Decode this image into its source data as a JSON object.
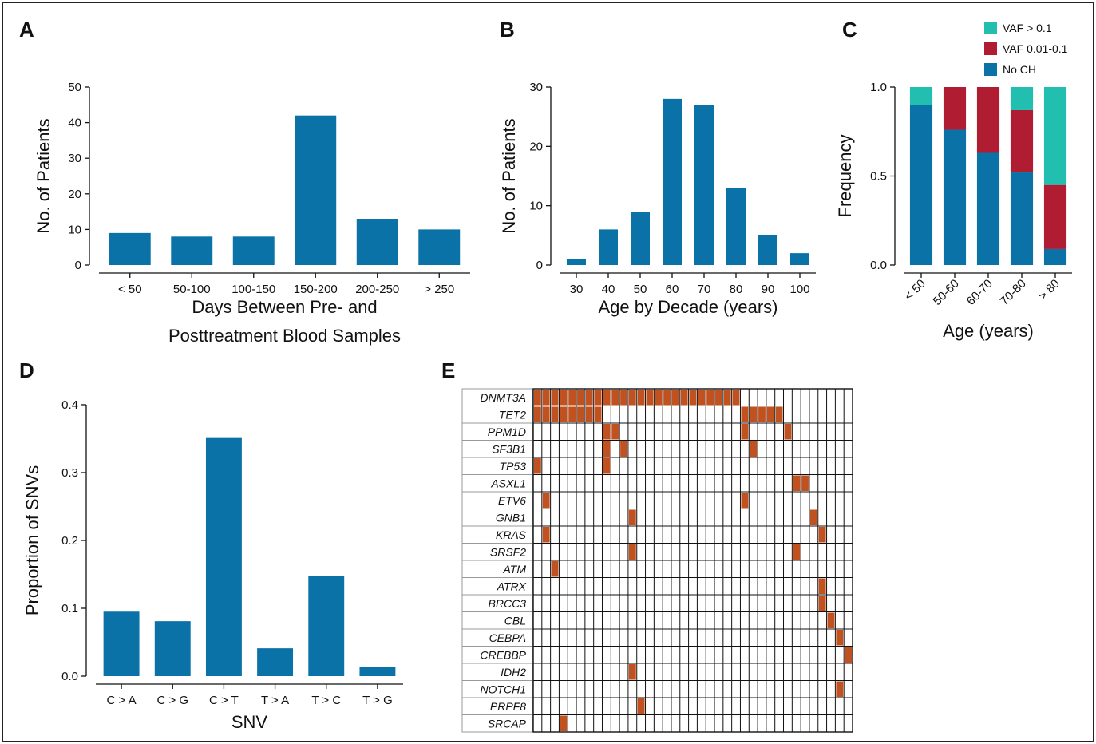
{
  "colors": {
    "bar": "#0a72a6",
    "vaf_high": "#22bfb0",
    "vaf_mid": "#b01c32",
    "mut": "#c1521f",
    "axis": "#111111"
  },
  "panels": {
    "A": "A",
    "B": "B",
    "C": "C",
    "D": "D",
    "E": "E"
  },
  "chart_data": [
    {
      "panel": "A",
      "type": "bar",
      "categories": [
        "< 50",
        "50-100",
        "100-150",
        "150-200",
        "200-250",
        "> 250"
      ],
      "values": [
        9,
        8,
        8,
        42,
        13,
        10
      ],
      "xlabel_lines": [
        "Days Between Pre- and",
        "Posttreatment Blood Samples"
      ],
      "ylabel": "No. of Patients",
      "ylim": [
        0,
        50
      ],
      "yticks": [
        "0",
        "10",
        "20",
        "30",
        "40",
        "50"
      ]
    },
    {
      "panel": "B",
      "type": "bar",
      "categories": [
        "30",
        "40",
        "50",
        "60",
        "70",
        "80",
        "90",
        "100"
      ],
      "values": [
        1,
        6,
        9,
        28,
        27,
        13,
        5,
        2
      ],
      "xlabel": "Age by Decade (years)",
      "ylabel": "No. of Patients",
      "ylim": [
        0,
        30
      ],
      "yticks": [
        "0",
        "10",
        "20",
        "30"
      ]
    },
    {
      "panel": "C",
      "type": "bar",
      "stacked": true,
      "categories": [
        "< 50",
        "50-60",
        "60-70",
        "70-80",
        "> 80"
      ],
      "series": [
        {
          "name": "No CH",
          "values": [
            0.9,
            0.76,
            0.63,
            0.52,
            0.09
          ]
        },
        {
          "name": "VAF 0.01-0.1",
          "values": [
            0.0,
            0.24,
            0.37,
            0.35,
            0.36
          ]
        },
        {
          "name": "VAF > 0.1",
          "values": [
            0.1,
            0.0,
            0.0,
            0.13,
            0.55
          ]
        }
      ],
      "xlabel": "Age (years)",
      "ylabel": "Frequency",
      "ylim": [
        0,
        1
      ],
      "yticks": [
        "0.0",
        "0.5",
        "1.0"
      ],
      "legend": "top-right"
    },
    {
      "panel": "D",
      "type": "bar",
      "categories": [
        "C > A",
        "C > G",
        "C > T",
        "T > A",
        "T > C",
        "T > G"
      ],
      "values": [
        0.095,
        0.081,
        0.351,
        0.041,
        0.148,
        0.014
      ],
      "xlabel": "SNV",
      "ylabel": "Proportion of SNVs",
      "ylim": [
        0,
        0.4
      ],
      "yticks": [
        "0.0",
        "0.1",
        "0.2",
        "0.3",
        "0.4"
      ]
    },
    {
      "panel": "E",
      "type": "heatmap",
      "genes": [
        "DNMT3A",
        "TET2",
        "PPM1D",
        "SF3B1",
        "TP53",
        "ASXL1",
        "ETV6",
        "GNB1",
        "KRAS",
        "SRSF2",
        "ATM",
        "ATRX",
        "BRCC3",
        "CBL",
        "CEBPA",
        "CREBBP",
        "IDH2",
        "NOTCH1",
        "PRPF8",
        "SRCAP"
      ],
      "n_patients": 37,
      "mutated_patient_indices": [
        [
          0,
          1,
          2,
          3,
          4,
          5,
          6,
          7,
          8,
          9,
          10,
          11,
          12,
          13,
          14,
          15,
          16,
          17,
          18,
          19,
          20,
          21,
          22,
          23
        ],
        [
          0,
          1,
          2,
          3,
          4,
          5,
          6,
          7,
          24,
          25,
          26,
          27,
          28
        ],
        [
          8,
          9,
          24,
          29
        ],
        [
          8,
          10,
          25
        ],
        [
          0,
          8
        ],
        [
          30,
          31
        ],
        [
          1,
          24
        ],
        [
          11,
          32
        ],
        [
          1,
          33
        ],
        [
          11,
          30
        ],
        [
          2
        ],
        [
          33
        ],
        [
          33
        ],
        [
          34
        ],
        [
          35
        ],
        [
          36
        ],
        [
          11
        ],
        [
          35
        ],
        [
          12
        ],
        [
          3
        ]
      ]
    }
  ]
}
